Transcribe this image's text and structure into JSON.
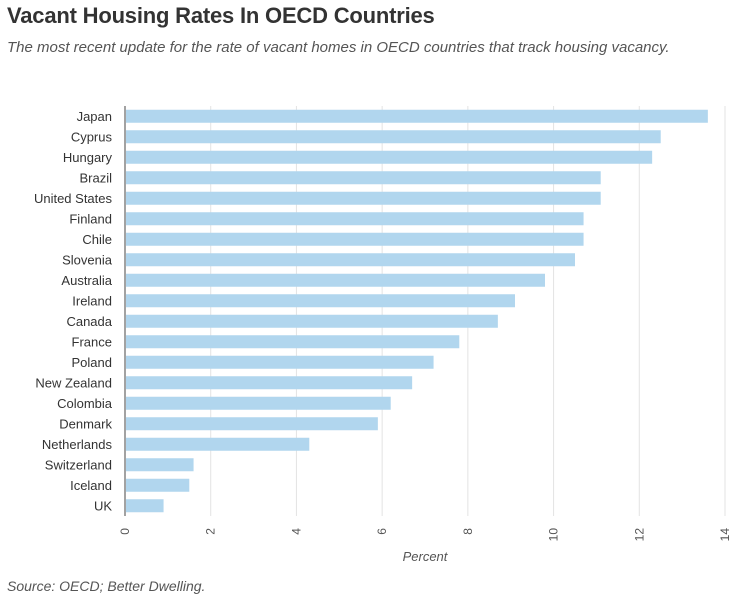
{
  "title": "Vacant Housing Rates In OECD Countries",
  "subtitle": "The most recent update for the rate of vacant homes in OECD countries that track housing vacancy.",
  "source": "Source: OECD; Better Dwelling.",
  "colors": {
    "bar": "#b1d6ee",
    "grid": "#e3e3e3",
    "axis": "#444444"
  },
  "chart_data": {
    "type": "bar",
    "orientation": "horizontal",
    "title": "Vacant Housing Rates In OECD Countries",
    "xlabel": "Percent",
    "ylabel": "",
    "xlim": [
      0,
      14
    ],
    "xticks": [
      0,
      2,
      4,
      6,
      8,
      10,
      12,
      14
    ],
    "xtick_labels": [
      "0",
      "2",
      "4",
      "6",
      "8",
      "10",
      "12",
      "14"
    ],
    "grid": true,
    "categories": [
      "Japan",
      "Cyprus",
      "Hungary",
      "Brazil",
      "United States",
      "Finland",
      "Chile",
      "Slovenia",
      "Australia",
      "Ireland",
      "Canada",
      "France",
      "Poland",
      "New Zealand",
      "Colombia",
      "Denmark",
      "Netherlands",
      "Switzerland",
      "Iceland",
      "UK"
    ],
    "values": [
      13.6,
      12.5,
      12.3,
      11.1,
      11.1,
      10.7,
      10.7,
      10.5,
      9.8,
      9.1,
      8.7,
      7.8,
      7.2,
      6.7,
      6.2,
      5.9,
      4.3,
      1.6,
      1.5,
      0.9
    ]
  }
}
